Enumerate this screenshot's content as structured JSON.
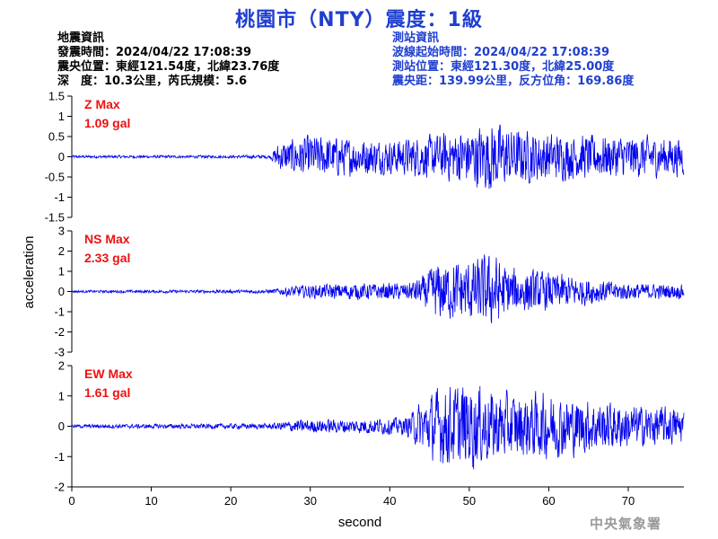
{
  "title": "桃園市（NTY）震度：1級",
  "quake_info": {
    "heading": "地震資訊",
    "origin_time": "發震時間：2024/04/22 17:08:39",
    "epicenter": "震央位置：東經121.54度，北緯23.76度",
    "depth_magnitude": "深　度：10.3公里，芮氏規模：5.6"
  },
  "station_info": {
    "heading": "測站資訊",
    "wave_start": "波線起始時間：2024/04/22 17:08:39",
    "station_location": "測站位置：東經121.30度，北緯25.00度",
    "distance_azimuth": "震央距：139.99公里，反方位角：169.86度"
  },
  "agency": "中央氣象署",
  "colors": {
    "trace": "#0000ee",
    "label": "#ee1111",
    "title": "#1f3fcf",
    "axis": "#000000"
  },
  "chart_data": {
    "type": "line",
    "xlabel": "second",
    "ylabel": "acceleration",
    "xlim": [
      0,
      77
    ],
    "x_ticks": [
      "0",
      "10",
      "20",
      "30",
      "40",
      "50",
      "60",
      "70"
    ],
    "x_tick_values": [
      0,
      10,
      20,
      30,
      40,
      50,
      60,
      70
    ],
    "grid": false,
    "panels": [
      {
        "name": "Z",
        "label": "Z Max",
        "max_text": "1.09 gal",
        "max_value": 1.09,
        "ylim": [
          -1.5,
          1.5
        ],
        "y_ticks": [
          "-1.5",
          "-1",
          "-0.5",
          "0",
          "0.5",
          "1",
          "1.5"
        ],
        "y_tick_values": [
          -1.5,
          -1,
          -0.5,
          0,
          0.5,
          1,
          1.5
        ],
        "envelope": [
          [
            0,
            0.03
          ],
          [
            20,
            0.03
          ],
          [
            25,
            0.04
          ],
          [
            26,
            0.3
          ],
          [
            30,
            0.45
          ],
          [
            35,
            0.4
          ],
          [
            40,
            0.35
          ],
          [
            45,
            0.45
          ],
          [
            50,
            0.6
          ],
          [
            53,
            0.75
          ],
          [
            55,
            0.6
          ],
          [
            60,
            0.5
          ],
          [
            65,
            0.45
          ],
          [
            70,
            0.45
          ],
          [
            77,
            0.4
          ]
        ]
      },
      {
        "name": "NS",
        "label": "NS Max",
        "max_text": "2.33 gal",
        "max_value": 2.33,
        "ylim": [
          -3,
          3
        ],
        "y_ticks": [
          "-3",
          "-2",
          "-1",
          "0",
          "1",
          "2",
          "3"
        ],
        "y_tick_values": [
          -3,
          -2,
          -1,
          0,
          1,
          2,
          3
        ],
        "envelope": [
          [
            0,
            0.05
          ],
          [
            25,
            0.08
          ],
          [
            28,
            0.25
          ],
          [
            35,
            0.35
          ],
          [
            42,
            0.35
          ],
          [
            44,
            0.6
          ],
          [
            46,
            1.2
          ],
          [
            50,
            1.3
          ],
          [
            53,
            1.6
          ],
          [
            55,
            1.0
          ],
          [
            60,
            0.8
          ],
          [
            65,
            0.55
          ],
          [
            70,
            0.35
          ],
          [
            77,
            0.3
          ]
        ]
      },
      {
        "name": "EW",
        "label": "EW Max",
        "max_text": "1.61 gal",
        "max_value": 1.61,
        "ylim": [
          -2,
          2
        ],
        "y_ticks": [
          "-2",
          "-1",
          "0",
          "1",
          "2"
        ],
        "y_tick_values": [
          -2,
          -1,
          0,
          1,
          2
        ],
        "envelope": [
          [
            0,
            0.05
          ],
          [
            25,
            0.08
          ],
          [
            28,
            0.18
          ],
          [
            35,
            0.2
          ],
          [
            42,
            0.25
          ],
          [
            44,
            0.7
          ],
          [
            46,
            1.05
          ],
          [
            50,
            1.25
          ],
          [
            53,
            1.0
          ],
          [
            56,
            0.9
          ],
          [
            60,
            0.9
          ],
          [
            65,
            0.75
          ],
          [
            70,
            0.6
          ],
          [
            77,
            0.5
          ]
        ]
      }
    ]
  }
}
